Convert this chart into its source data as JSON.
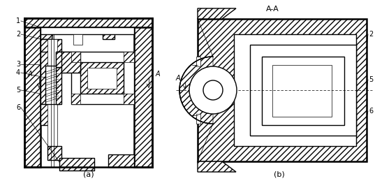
{
  "background_color": "#ffffff",
  "caption_a": "(a)",
  "caption_b": "(b)",
  "section_label": "A-A",
  "figure_width": 5.37,
  "figure_height": 2.59,
  "dpi": 100
}
